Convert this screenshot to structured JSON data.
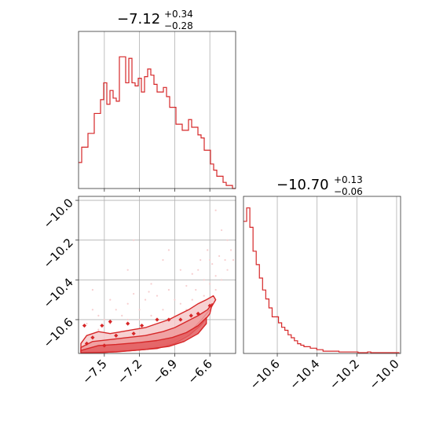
{
  "chart_data": [
    {
      "panel": "hist_param1",
      "type": "histogram",
      "title_value": "−7.12",
      "title_plus": "+0.34",
      "title_minus": "−0.28",
      "xlim": [
        -7.72,
        -6.38
      ],
      "ylim": [
        0,
        1.0
      ],
      "grid": true,
      "x_tick_values": [
        -7.5,
        -7.2,
        -6.9,
        -6.6
      ],
      "bin_start": -7.72,
      "bin_width": 0.0268,
      "counts": [
        0.17,
        0.27,
        0.27,
        0.36,
        0.36,
        0.49,
        0.49,
        0.58,
        0.69,
        0.55,
        0.64,
        0.59,
        0.57,
        0.86,
        0.86,
        0.69,
        0.85,
        0.69,
        0.67,
        0.72,
        0.63,
        0.73,
        0.78,
        0.74,
        0.68,
        0.63,
        0.63,
        0.66,
        0.6,
        0.53,
        0.53,
        0.42,
        0.42,
        0.38,
        0.38,
        0.45,
        0.4,
        0.4,
        0.35,
        0.33,
        0.25,
        0.25,
        0.16,
        0.12,
        0.08,
        0.08,
        0.04,
        0.02,
        0.02,
        0.0
      ]
    },
    {
      "panel": "hist_param2",
      "type": "histogram",
      "title_value": "−10.70",
      "title_plus": "+0.13",
      "title_minus": "−0.06",
      "xlim": [
        -10.77,
        -9.98
      ],
      "ylim": [
        0,
        1.0
      ],
      "grid": true,
      "x_tick_values": [
        -10.6,
        -10.4,
        -10.2,
        -10.0
      ],
      "x_tick_labels": [
        "−10.6",
        "−10.4",
        "−10.2",
        "−10.0"
      ],
      "bin_start": -10.77,
      "bin_width": 0.016,
      "counts": [
        0.88,
        0.97,
        0.84,
        0.68,
        0.59,
        0.5,
        0.42,
        0.36,
        0.3,
        0.24,
        0.24,
        0.2,
        0.17,
        0.15,
        0.12,
        0.1,
        0.08,
        0.06,
        0.05,
        0.04,
        0.04,
        0.03,
        0.03,
        0.02,
        0.02,
        0.01,
        0.01,
        0.01,
        0.01,
        0.01,
        0.005,
        0.005,
        0.005,
        0.005,
        0.005,
        0.005,
        0.0,
        0.0,
        0.0,
        0.005,
        0.0,
        0.0,
        0.0,
        0.0,
        0.0,
        0.0,
        0.0,
        0.0,
        0.0
      ]
    },
    {
      "panel": "joint",
      "type": "scatter",
      "xlim": [
        -7.72,
        -6.38
      ],
      "ylim": [
        -10.77,
        -9.98
      ],
      "grid": true,
      "x_tick_values": [
        -7.5,
        -7.2,
        -6.9,
        -6.6
      ],
      "x_tick_labels": [
        "−7.5",
        "−7.2",
        "−6.9",
        "−6.6"
      ],
      "y_tick_values": [
        -10.0,
        -10.2,
        -10.4,
        -10.6
      ],
      "y_tick_labels": [
        "−10.0",
        "−10.2",
        "−10.4",
        "−10.6"
      ],
      "colors": {
        "line": "#d62728",
        "fill_light": "#f6c9ca",
        "fill_mid": "#ef9a9b",
        "fill_dark": "#e35d5f"
      },
      "contours": [
        {
          "level": 1,
          "points": [
            [
              -7.7,
              -10.72
            ],
            [
              -7.65,
              -10.68
            ],
            [
              -7.55,
              -10.66
            ],
            [
              -7.45,
              -10.67
            ],
            [
              -7.35,
              -10.66
            ],
            [
              -7.25,
              -10.65
            ],
            [
              -7.15,
              -10.64
            ],
            [
              -7.05,
              -10.62
            ],
            [
              -6.95,
              -10.6
            ],
            [
              -6.85,
              -10.57
            ],
            [
              -6.78,
              -10.55
            ],
            [
              -6.7,
              -10.52
            ],
            [
              -6.63,
              -10.5
            ],
            [
              -6.57,
              -10.48
            ],
            [
              -6.55,
              -10.5
            ],
            [
              -6.6,
              -10.55
            ],
            [
              -6.67,
              -10.6
            ],
            [
              -6.75,
              -10.65
            ],
            [
              -6.85,
              -10.69
            ],
            [
              -6.95,
              -10.72
            ],
            [
              -7.1,
              -10.74
            ],
            [
              -7.3,
              -10.75
            ],
            [
              -7.5,
              -10.76
            ],
            [
              -7.7,
              -10.76
            ]
          ]
        },
        {
          "level": 2,
          "points": [
            [
              -7.7,
              -10.74
            ],
            [
              -7.6,
              -10.71
            ],
            [
              -7.45,
              -10.7
            ],
            [
              -7.3,
              -10.69
            ],
            [
              -7.15,
              -10.68
            ],
            [
              -7.0,
              -10.66
            ],
            [
              -6.9,
              -10.64
            ],
            [
              -6.8,
              -10.61
            ],
            [
              -6.7,
              -10.58
            ],
            [
              -6.62,
              -10.55
            ],
            [
              -6.58,
              -10.52
            ],
            [
              -6.6,
              -10.57
            ],
            [
              -6.68,
              -10.63
            ],
            [
              -6.78,
              -10.68
            ],
            [
              -6.9,
              -10.72
            ],
            [
              -7.05,
              -10.745
            ],
            [
              -7.25,
              -10.755
            ],
            [
              -7.5,
              -10.765
            ],
            [
              -7.7,
              -10.765
            ]
          ]
        },
        {
          "level": 3,
          "points": [
            [
              -7.7,
              -10.755
            ],
            [
              -7.55,
              -10.73
            ],
            [
              -7.4,
              -10.725
            ],
            [
              -7.2,
              -10.715
            ],
            [
              -7.05,
              -10.705
            ],
            [
              -6.92,
              -10.69
            ],
            [
              -6.8,
              -10.665
            ],
            [
              -6.7,
              -10.63
            ],
            [
              -6.63,
              -10.59
            ],
            [
              -6.63,
              -10.62
            ],
            [
              -6.7,
              -10.67
            ],
            [
              -6.82,
              -10.71
            ],
            [
              -6.95,
              -10.735
            ],
            [
              -7.15,
              -10.75
            ],
            [
              -7.4,
              -10.762
            ],
            [
              -7.7,
              -10.768
            ]
          ]
        }
      ],
      "scatter_points": [
        [
          -7.25,
          -10.2
        ],
        [
          -7.1,
          -10.42
        ],
        [
          -6.95,
          -10.45
        ],
        [
          -6.9,
          -10.5
        ],
        [
          -6.8,
          -10.43
        ],
        [
          -6.75,
          -10.37
        ],
        [
          -6.7,
          -10.35
        ],
        [
          -6.65,
          -10.4
        ],
        [
          -6.6,
          -10.42
        ],
        [
          -6.55,
          -10.45
        ],
        [
          -6.5,
          -10.4
        ],
        [
          -6.45,
          -10.35
        ],
        [
          -6.42,
          -10.25
        ],
        [
          -6.47,
          -10.3
        ],
        [
          -6.52,
          -10.28
        ],
        [
          -6.58,
          -10.32
        ],
        [
          -6.62,
          -10.25
        ],
        [
          -6.68,
          -10.3
        ],
        [
          -6.72,
          -10.45
        ],
        [
          -6.85,
          -10.52
        ],
        [
          -7.0,
          -10.55
        ],
        [
          -7.05,
          -10.48
        ],
        [
          -7.15,
          -10.5
        ],
        [
          -7.2,
          -10.55
        ],
        [
          -7.3,
          -10.52
        ],
        [
          -7.35,
          -10.58
        ],
        [
          -7.4,
          -10.55
        ],
        [
          -7.45,
          -10.5
        ],
        [
          -7.5,
          -10.6
        ],
        [
          -7.55,
          -10.58
        ],
        [
          -7.6,
          -10.55
        ],
        [
          -7.65,
          -10.62
        ],
        [
          -7.55,
          -10.65
        ],
        [
          -7.45,
          -10.62
        ],
        [
          -7.3,
          -10.6
        ],
        [
          -7.2,
          -10.6
        ],
        [
          -7.1,
          -10.58
        ],
        [
          -7.0,
          -10.62
        ],
        [
          -6.9,
          -10.58
        ],
        [
          -6.8,
          -10.55
        ],
        [
          -6.75,
          -10.5
        ],
        [
          -6.65,
          -10.48
        ],
        [
          -6.55,
          -10.38
        ],
        [
          -6.6,
          -10.3
        ],
        [
          -6.4,
          -10.3
        ],
        [
          -6.45,
          -10.2
        ],
        [
          -6.5,
          -10.15
        ],
        [
          -6.55,
          -10.05
        ],
        [
          -6.95,
          -10.25
        ],
        [
          -7.3,
          -10.35
        ],
        [
          -7.6,
          -10.45
        ],
        [
          -7.0,
          -10.3
        ],
        [
          -6.85,
          -10.35
        ],
        [
          -7.12,
          -10.46
        ],
        [
          -7.25,
          -10.47
        ]
      ],
      "diamonds": [
        [
          -7.67,
          -10.63
        ],
        [
          -7.52,
          -10.63
        ],
        [
          -7.45,
          -10.61
        ],
        [
          -7.3,
          -10.62
        ],
        [
          -7.18,
          -10.63
        ],
        [
          -7.05,
          -10.6
        ],
        [
          -6.95,
          -10.6
        ],
        [
          -6.85,
          -10.6
        ],
        [
          -6.76,
          -10.58
        ],
        [
          -6.7,
          -10.57
        ],
        [
          -6.6,
          -10.53
        ],
        [
          -7.6,
          -10.69
        ],
        [
          -7.4,
          -10.68
        ],
        [
          -7.25,
          -10.67
        ],
        [
          -7.65,
          -10.72
        ],
        [
          -7.5,
          -10.73
        ]
      ]
    }
  ]
}
